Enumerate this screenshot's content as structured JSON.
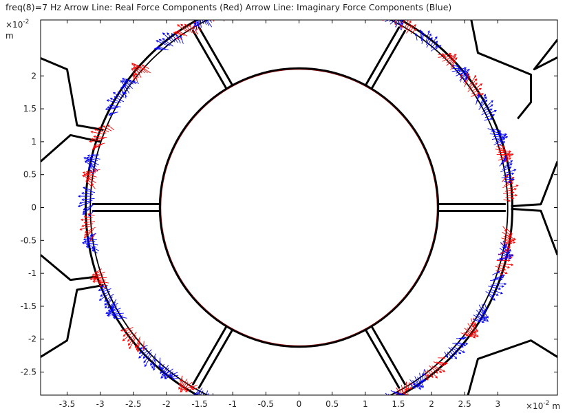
{
  "title": "freq(8)=7 Hz  Arrow Line: Real Force Components (Red)  Arrow Line: Imaginary Force Components (Blue)",
  "colors": {
    "geometry": "#000000",
    "real": "#ff0000",
    "imaginary": "#0000ff",
    "frame": "#000000",
    "background": "#ffffff"
  },
  "chart_data": {
    "type": "scatter",
    "xlim": [
      -3.9,
      3.9
    ],
    "ylim": [
      -2.85,
      2.85
    ],
    "x_ticks": [
      -3.5,
      -3,
      -2.5,
      -2,
      -1.5,
      -1,
      -0.5,
      0,
      0.5,
      1,
      1.5,
      2,
      2.5,
      3
    ],
    "y_ticks": [
      -2.5,
      -2,
      -1.5,
      -1,
      -0.5,
      0,
      0.5,
      1,
      1.5,
      2
    ],
    "x_tick_labels": [
      "-3.5",
      "-3",
      "-2.5",
      "-2",
      "-1.5",
      "-1",
      "-0.5",
      "0",
      "0.5",
      "1",
      "1.5",
      "2",
      "2.5",
      "3"
    ],
    "y_tick_labels": [
      "-2.5",
      "-2",
      "-1.5",
      "-1",
      "-0.5",
      "0",
      "0.5",
      "1",
      "1.5",
      "2"
    ],
    "x_unit": "m",
    "y_unit": "m",
    "x_scale_base": "×10",
    "x_scale_exp": "-2",
    "y_scale_base": "×10",
    "y_scale_exp": "-2",
    "grid": false,
    "geometry": {
      "rotor_radius": 2.1,
      "stator_inner_radius": 3.15,
      "stator_outer_radius": 3.22,
      "spoke_angles_deg": [
        0,
        60,
        120,
        180,
        240,
        300
      ],
      "outer_polylines": [
        [
          [
            -3.9,
            2.27
          ],
          [
            -3.5,
            2.1
          ],
          [
            -3.35,
            1.25
          ],
          [
            -2.95,
            1.18
          ]
        ],
        [
          [
            -3.9,
            0.7
          ],
          [
            -3.45,
            1.1
          ],
          [
            -3.0,
            1.0
          ]
        ],
        [
          [
            -3.9,
            -0.72
          ],
          [
            -3.45,
            -1.1
          ],
          [
            -3.05,
            -1.05
          ]
        ],
        [
          [
            -3.9,
            -2.27
          ],
          [
            -3.5,
            -2.02
          ],
          [
            -3.35,
            -1.25
          ],
          [
            -2.95,
            -1.18
          ]
        ],
        [
          [
            2.6,
            2.85
          ],
          [
            2.7,
            2.35
          ],
          [
            3.5,
            2.02
          ],
          [
            3.5,
            1.6
          ],
          [
            3.3,
            1.35
          ]
        ],
        [
          [
            3.9,
            2.55
          ],
          [
            3.55,
            2.1
          ],
          [
            3.9,
            2.28
          ]
        ],
        [
          [
            3.9,
            0.7
          ],
          [
            3.65,
            0.05
          ],
          [
            3.2,
            0.02
          ]
        ],
        [
          [
            3.9,
            -0.72
          ],
          [
            3.65,
            -0.05
          ],
          [
            3.2,
            -0.02
          ]
        ],
        [
          [
            3.9,
            -2.27
          ],
          [
            3.5,
            -2.02
          ],
          [
            2.7,
            -2.3
          ],
          [
            2.55,
            -2.85
          ]
        ]
      ]
    },
    "series": [
      {
        "name": "Real Force Components (Red)",
        "clusters_deg": [
          113,
          122,
          140,
          160,
          172,
          185,
          200,
          218,
          238,
          250,
          262,
          290,
          300,
          310,
          325,
          345,
          352,
          5,
          15,
          35,
          45,
          60,
          68
        ]
      },
      {
        "name": "Imaginary Force Components (Blue)",
        "clusters_deg": [
          110,
          118,
          128,
          145,
          150,
          168,
          178,
          190,
          205,
          210,
          225,
          232,
          244,
          255,
          295,
          305,
          318,
          330,
          338,
          348,
          10,
          20,
          28,
          40,
          52,
          63,
          72
        ]
      }
    ]
  }
}
